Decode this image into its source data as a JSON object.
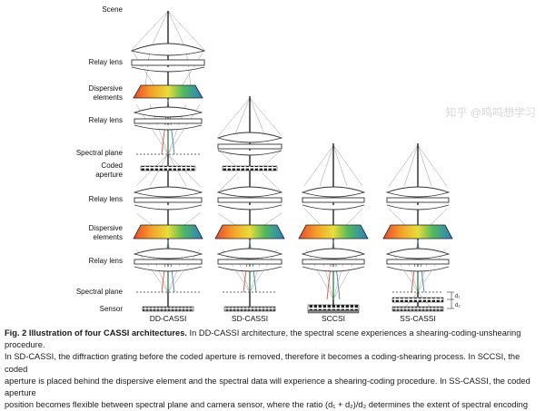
{
  "labels": {
    "scene": "Scene",
    "relay_lens_1": "Relay lens",
    "dispersive_1": "Dispersive",
    "dispersive_1b": "elements",
    "relay_lens_2": "Relay lens",
    "spectral_plane_1": "Spectral plane",
    "coded": "Coded",
    "aperture": "aperture",
    "relay_lens_3": "Relay lens",
    "dispersive_2": "Dispersive",
    "dispersive_2b": "elements",
    "relay_lens_4": "Relay lens",
    "spectral_plane_2": "Spectral plane",
    "sensor": "Sensor"
  },
  "architectures": [
    {
      "name": "DD-CASSI"
    },
    {
      "name": "SD-CASSI"
    },
    {
      "name": "SCCSI"
    },
    {
      "name": "SS-CASSI"
    }
  ],
  "annotations": {
    "d1": "d₁",
    "d2": "d₂"
  },
  "watermark": "知乎 @鸣鸣想学习",
  "caption": {
    "fig_number": "Fig. 2 Illustration of four CASSI architectures.",
    "line1_rest": " In DD-CASSI architecture, the spectral scene experiences a shearing-coding-unshearing procedure.",
    "line2": "In SD-CASSI, the diffraction grating before the coded aperture is removed, therefore it becomes a coding-shearing process. In SCCSI, the coded",
    "line3": "aperture is placed behind the dispersive element and the spectral data will experience a shearing-coding procedure. In SS-CASSI, the coded aperture",
    "line4": "position becomes flexible between spectral plane and camera sensor, where the ratio (d₁ + d₂)/d₂ determines the extent of spectral encoding"
  }
}
